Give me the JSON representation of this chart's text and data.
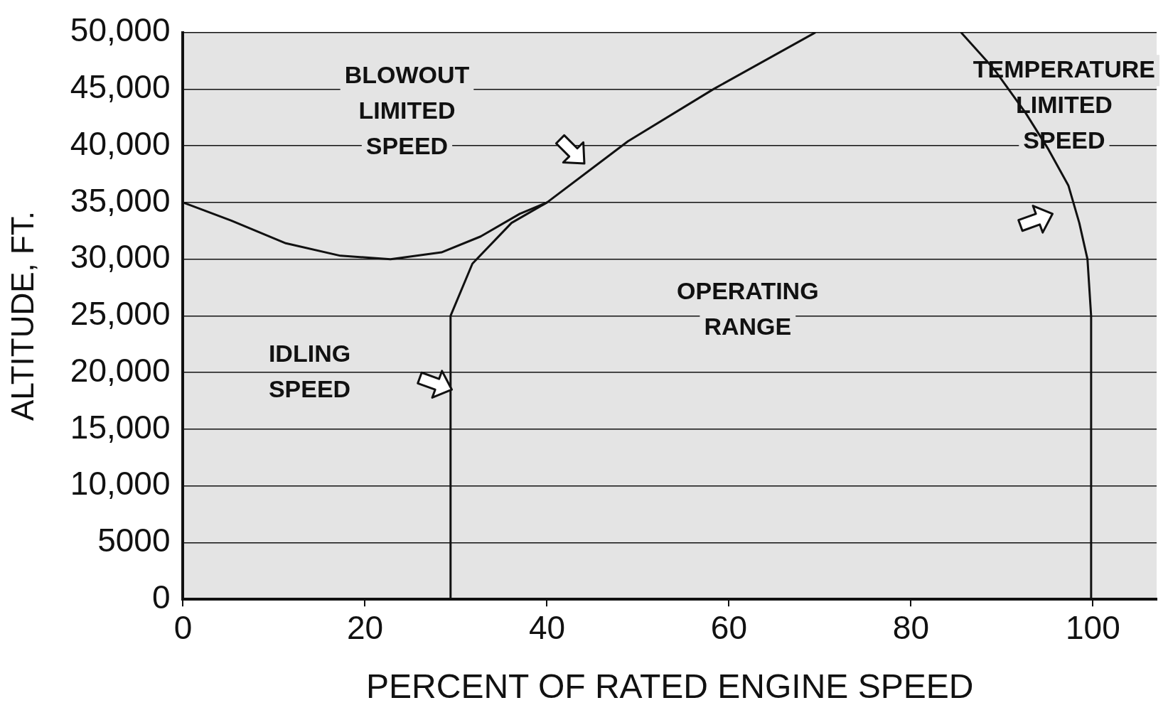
{
  "chart_data": {
    "type": "line",
    "xlabel": "PERCENT OF RATED ENGINE SPEED",
    "ylabel": "ALTITUDE, FT.",
    "annotations": [
      "BLOWOUT\nLIMITED\nSPEED",
      "TEMPERATURE\nLIMITED\nSPEED",
      "OPERATING\nRANGE",
      "IDLING\nSPEED"
    ],
    "series": [
      {
        "color": "#111111",
        "x": [
          0,
          5.3,
          11.3,
          17.3,
          22.8,
          28.4,
          32.7,
          37,
          40
        ],
        "values": [
          35000,
          33400,
          31400,
          30300,
          30000,
          30600,
          32000,
          34000,
          35000
        ]
      },
      {
        "color": "#111111",
        "x": [
          29.4,
          29.4,
          31.8,
          36.1,
          40,
          48.9,
          58.3,
          69.5
        ],
        "values": [
          0,
          25000,
          29600,
          33200,
          35000,
          40400,
          45000,
          50000
        ]
      },
      {
        "color": "#111111",
        "x": [
          99.8,
          99.8,
          99.4,
          98.5,
          97.3,
          95.1,
          92.6,
          89.1,
          85.5
        ],
        "values": [
          0,
          25000,
          30000,
          33200,
          36500,
          39700,
          42900,
          46800,
          50000
        ]
      }
    ],
    "xlim": [
      0,
      107
    ],
    "xticks": [
      0,
      20,
      40,
      60,
      80,
      100
    ],
    "ylim": [
      0,
      50000
    ],
    "yticks": [
      0,
      5000,
      {
        "value": 10000,
        "label": "10,000"
      },
      {
        "value": 15000,
        "label": "15,000"
      },
      {
        "value": 20000,
        "label": "20,000"
      },
      {
        "value": 25000,
        "label": "25,000"
      },
      {
        "value": 30000,
        "label": "30,000"
      },
      {
        "value": 35000,
        "label": "35,000"
      },
      {
        "value": 40000,
        "label": "40,000"
      },
      {
        "value": 45000,
        "label": "45,000"
      },
      {
        "value": 50000,
        "label": "50,000"
      }
    ],
    "grid": "y",
    "legend": false,
    "marker": "none",
    "line_style": "solid"
  }
}
